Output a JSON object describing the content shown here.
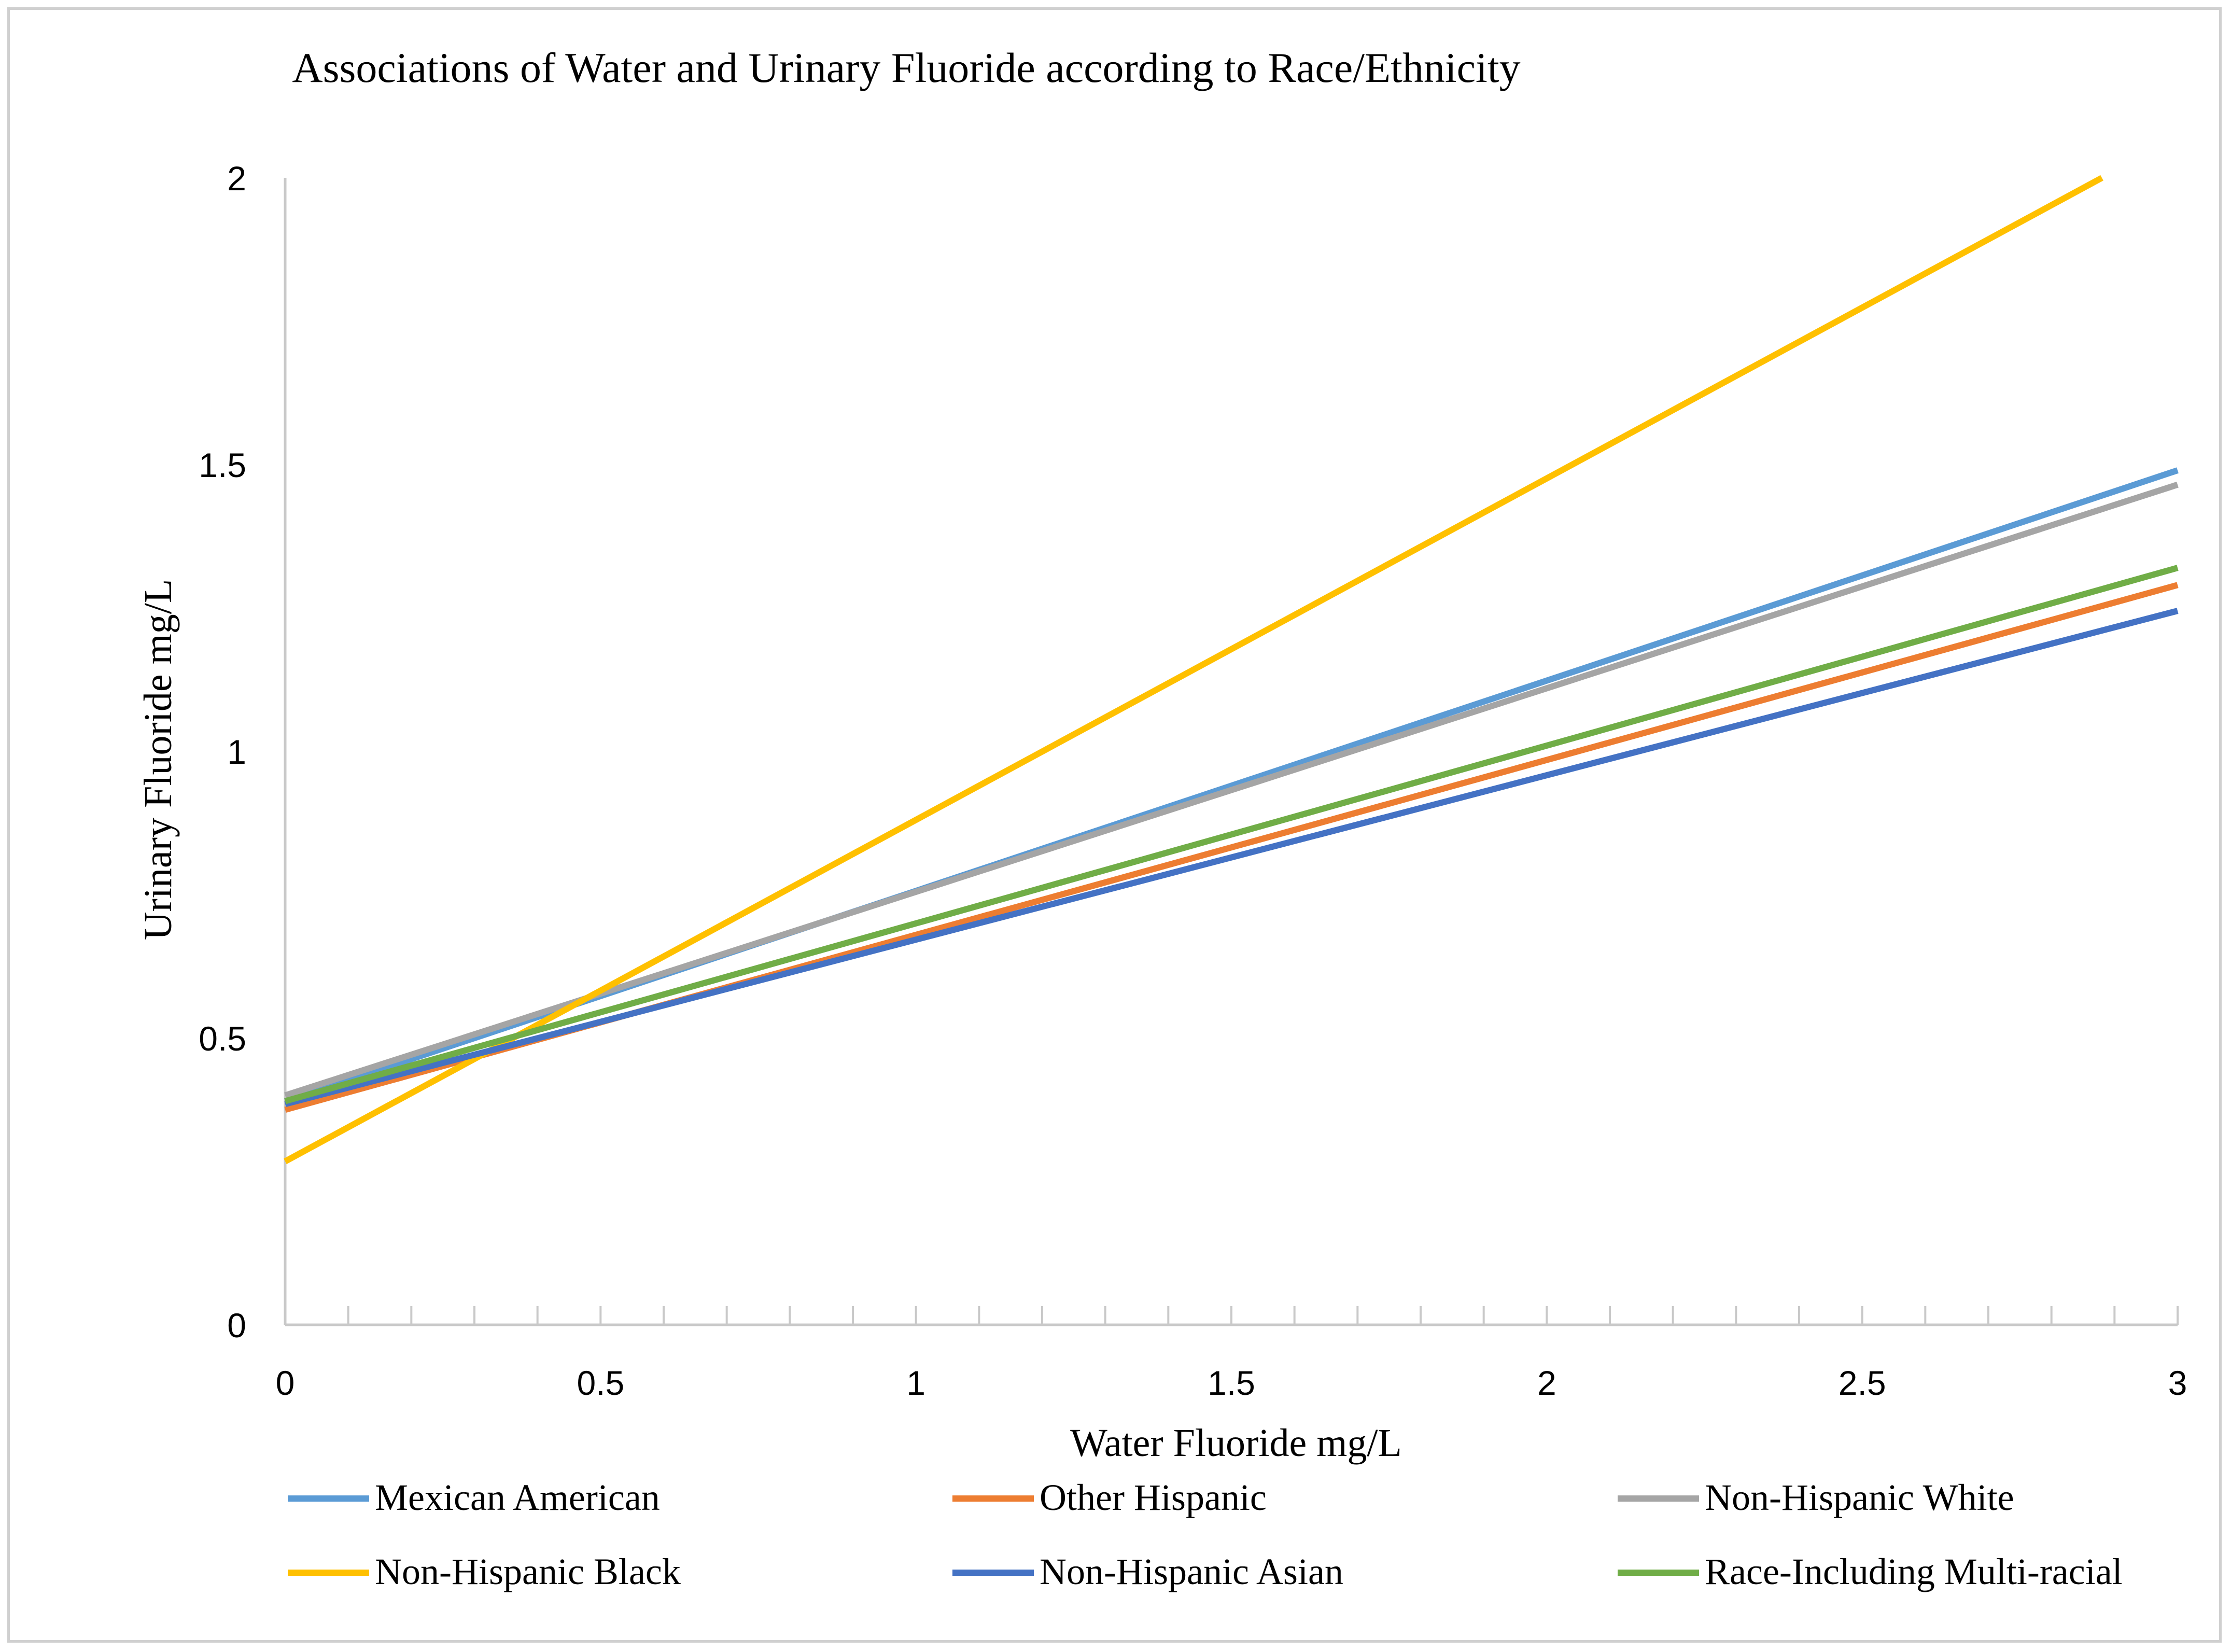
{
  "chart_data": {
    "type": "line",
    "title": "Associations of Water and Urinary Fluoride according to Race/Ethnicity",
    "xlabel": "Water Fluoride mg/L",
    "ylabel": "Urinary Fluoride mg/L",
    "xlim": [
      0,
      3
    ],
    "ylim": [
      0,
      2
    ],
    "x_ticks": [
      "0",
      "0.5",
      "1",
      "1.5",
      "2",
      "2.5",
      "3"
    ],
    "y_ticks": [
      "0",
      "0.5",
      "1",
      "1.5",
      "2"
    ],
    "x_minor_step": 0.1,
    "grid": false,
    "legend_position": "bottom",
    "series": [
      {
        "name": "Mexican American",
        "color": "#5B9BD5",
        "x": [
          0,
          3
        ],
        "y": [
          0.39,
          1.49
        ]
      },
      {
        "name": "Other Hispanic",
        "color": "#ED7D31",
        "x": [
          0,
          3
        ],
        "y": [
          0.375,
          1.29
        ]
      },
      {
        "name": "Non-Hispanic White",
        "color": "#A5A5A5",
        "x": [
          0,
          3
        ],
        "y": [
          0.4,
          1.465
        ]
      },
      {
        "name": "Non-Hispanic Black",
        "color": "#FFC000",
        "x": [
          0,
          2.88
        ],
        "y": [
          0.285,
          2.0
        ]
      },
      {
        "name": "Non-Hispanic Asian",
        "color": "#4472C4",
        "x": [
          0,
          3
        ],
        "y": [
          0.385,
          1.245
        ]
      },
      {
        "name": "Race-Including Multi-racial",
        "color": "#70AD47",
        "x": [
          0,
          3
        ],
        "y": [
          0.39,
          1.32
        ]
      }
    ]
  }
}
